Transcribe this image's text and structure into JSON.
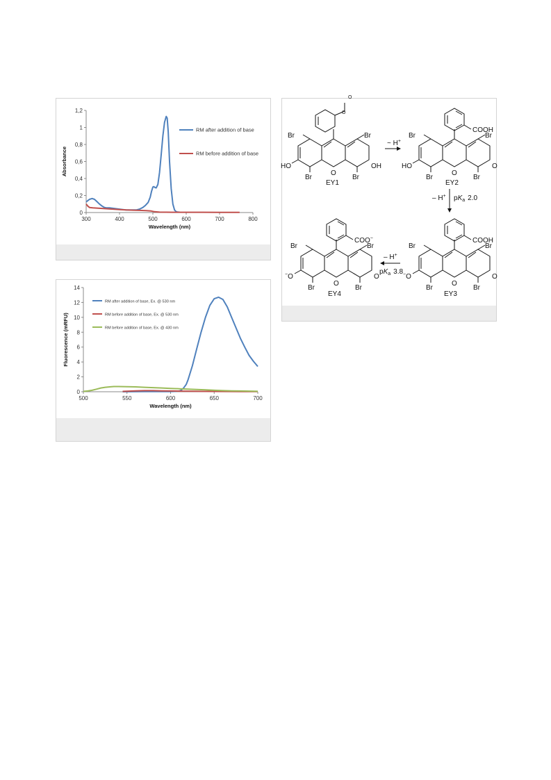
{
  "chart_data": [
    {
      "type": "line",
      "xlabel": "Wavelength (nm)",
      "ylabel": "Absorbance",
      "xlim": [
        300,
        800
      ],
      "ylim": [
        0,
        1.2
      ],
      "xticks": [
        "300",
        "400",
        "500",
        "600",
        "700",
        "800"
      ],
      "yticks": [
        "0",
        "0,2",
        "0,4",
        "0,6",
        "0,8",
        "1",
        "1,2"
      ],
      "legend": "right",
      "grid": false,
      "series": [
        {
          "name": "RM after addition of base",
          "color": "#4f81bd",
          "x": [
            300,
            305,
            310,
            318,
            325,
            332,
            340,
            348,
            355,
            362,
            370,
            380,
            390,
            400,
            410,
            420,
            430,
            440,
            450,
            460,
            470,
            478,
            486,
            492,
            496,
            500,
            503,
            506,
            510,
            515,
            520,
            525,
            530,
            535,
            540,
            543,
            546,
            550,
            555,
            560,
            565,
            570,
            575,
            580
          ],
          "y": [
            0.125,
            0.14,
            0.155,
            0.165,
            0.155,
            0.13,
            0.1,
            0.075,
            0.06,
            0.055,
            0.055,
            0.05,
            0.045,
            0.04,
            0.035,
            0.03,
            0.03,
            0.03,
            0.03,
            0.04,
            0.06,
            0.085,
            0.12,
            0.18,
            0.25,
            0.3,
            0.305,
            0.295,
            0.29,
            0.33,
            0.47,
            0.68,
            0.9,
            1.06,
            1.13,
            1.11,
            0.95,
            0.6,
            0.28,
            0.1,
            0.03,
            0.01,
            0.005,
            0.005
          ]
        },
        {
          "name": "RM before addition of base",
          "color": "#c0504d",
          "x": [
            300,
            305,
            310,
            320,
            340,
            360,
            380,
            400,
            420,
            440,
            460,
            480,
            495,
            505,
            520,
            560,
            600,
            650,
            700,
            760
          ],
          "y": [
            0.1,
            0.075,
            0.06,
            0.055,
            0.05,
            0.045,
            0.04,
            0.035,
            0.03,
            0.028,
            0.025,
            0.022,
            0.018,
            0.01,
            0.005,
            0.003,
            0.003,
            0.003,
            0.002,
            0.002
          ]
        }
      ]
    },
    {
      "type": "line",
      "xlabel": "Wavelength (nm)",
      "ylabel": "Fluorescence (mRFU)",
      "xlim": [
        500,
        700
      ],
      "ylim": [
        0,
        14
      ],
      "xticks": [
        "500",
        "550",
        "600",
        "650",
        "700"
      ],
      "yticks": [
        "0",
        "2",
        "4",
        "6",
        "8",
        "10",
        "12",
        "14"
      ],
      "legend": "top-left",
      "grid": false,
      "series": [
        {
          "name": "RM after addition of base, Ex. @ 530 nm",
          "color": "#4f81bd",
          "x": [
            545,
            570,
            600,
            605,
            610,
            612,
            615,
            618,
            620,
            625,
            630,
            635,
            640,
            645,
            650,
            655,
            660,
            665,
            670,
            675,
            680,
            685,
            690,
            695,
            700
          ],
          "y": [
            0,
            0.02,
            0.03,
            0.05,
            0.1,
            0.2,
            0.5,
            1.0,
            1.6,
            3.5,
            5.8,
            8.0,
            10.0,
            11.6,
            12.5,
            12.7,
            12.4,
            11.4,
            10.0,
            8.6,
            7.2,
            6.0,
            4.9,
            4.1,
            3.4
          ]
        },
        {
          "name": "RM before addition of base, Ex. @ 530 nm",
          "color": "#c0504d",
          "x": [
            545,
            560,
            570,
            580,
            590,
            600,
            610,
            620,
            640,
            660,
            680,
            700
          ],
          "y": [
            0.05,
            0.12,
            0.15,
            0.15,
            0.12,
            0.1,
            0.08,
            0.07,
            0.05,
            0.04,
            0.03,
            0.02
          ]
        },
        {
          "name": "RM before addition of base, Ex. @ 430 nm",
          "color": "#9bbb59",
          "x": [
            500,
            505,
            510,
            515,
            520,
            525,
            530,
            535,
            540,
            550,
            560,
            570,
            580,
            590,
            600,
            610,
            620,
            630,
            640,
            650,
            660,
            670,
            680,
            690,
            700
          ],
          "y": [
            0.05,
            0.1,
            0.2,
            0.35,
            0.5,
            0.6,
            0.65,
            0.7,
            0.7,
            0.68,
            0.65,
            0.6,
            0.55,
            0.5,
            0.45,
            0.4,
            0.35,
            0.3,
            0.25,
            0.2,
            0.15,
            0.12,
            0.1,
            0.08,
            0.06
          ]
        }
      ]
    }
  ],
  "scheme": {
    "labels": {
      "ey1": "EY1",
      "ey2": "EY2",
      "ey3": "EY3",
      "ey4": "EY4"
    },
    "substituents": {
      "br": "Br",
      "ho": "HO",
      "oh": "OH",
      "o": "O",
      "cooh": "COOH",
      "coo": "COO",
      "o_minus": "O"
    },
    "arrows": {
      "step1": "~ H",
      "step2_top": "– H",
      "step2_pk": "p",
      "step2_pk_value": "2.0",
      "step3_top": "– H",
      "step3_pk": "p",
      "step3_pk_value": "3.8",
      "ka_k": "K",
      "ka_a": "a",
      "plus": "+",
      "minus": "−"
    }
  }
}
